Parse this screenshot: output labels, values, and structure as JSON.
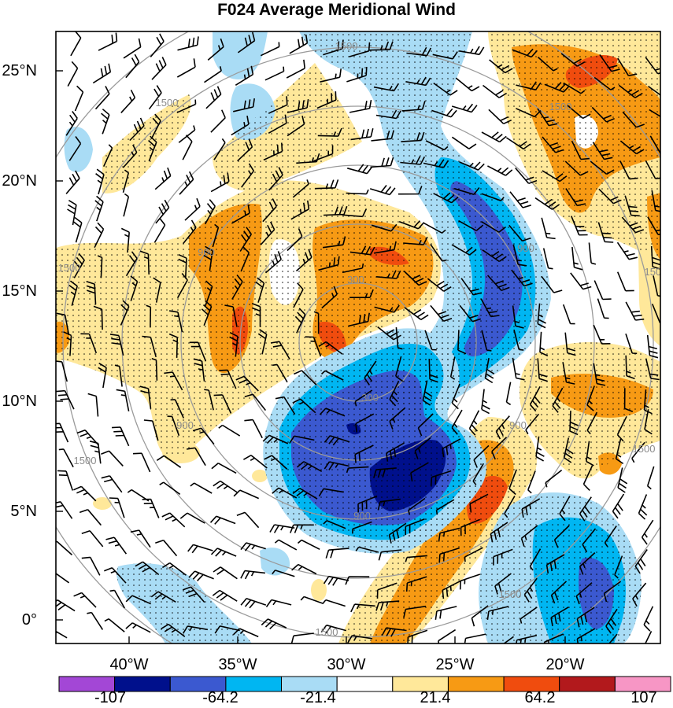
{
  "title": "F024 Average Meridional Wind",
  "axes": {
    "latitude_labels": [
      "25°N",
      "20°N",
      "15°N",
      "10°N",
      "5°N",
      "0°"
    ],
    "longitude_labels": [
      "40°W",
      "35°W",
      "30°W",
      "25°W",
      "20°W"
    ]
  },
  "colorbar": {
    "labels": [
      "-107",
      "-64.2",
      "-21.4",
      "21.4",
      "64.2",
      "107"
    ],
    "colors": [
      "#a347d6",
      "#00108c",
      "#3b59d0",
      "#00b6f2",
      "#a9dcf5",
      "#ffffff",
      "#ffe89a",
      "#f79a14",
      "#f04c0e",
      "#b2191c",
      "#f796c5"
    ]
  },
  "contour_labels": [
    "300",
    "900",
    "1500"
  ],
  "palette": {
    "dark_blue": "#00108c",
    "medium_blue": "#3b59d0",
    "cyan": "#00b6f2",
    "light_blue": "#a9dcf5",
    "light_yellow": "#ffe89a",
    "orange": "#f79a14",
    "red_orange": "#f04c0e",
    "contour_gray": "#9a9a9a"
  }
}
